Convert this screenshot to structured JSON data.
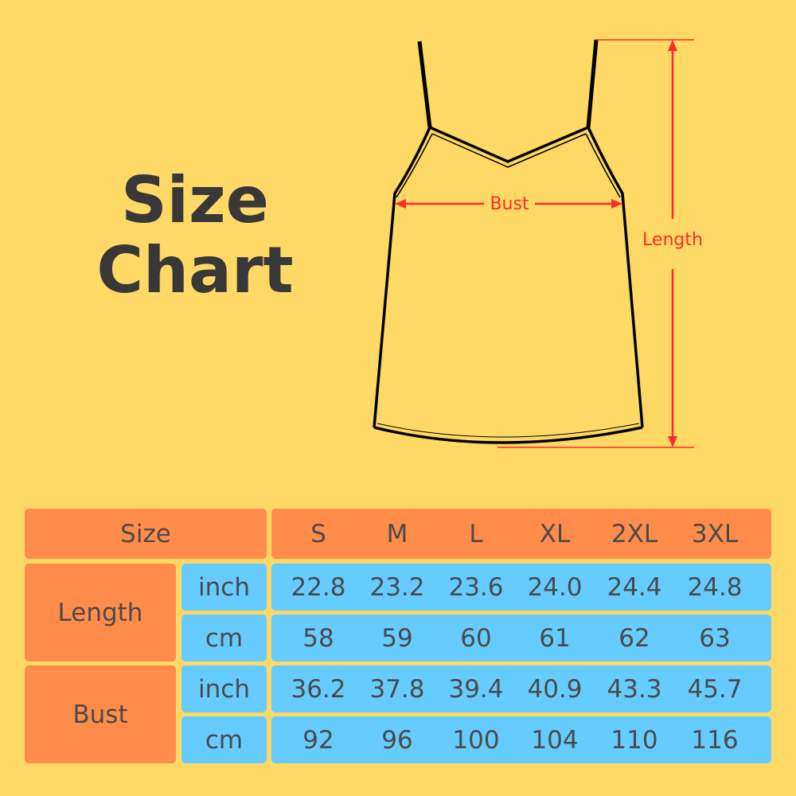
{
  "title": {
    "line1": "Size",
    "line2": "Chart"
  },
  "diagram": {
    "bust_label": "Bust",
    "length_label": "Length",
    "arrow_color": "#FF2A2A"
  },
  "colors": {
    "background": "#FFD966",
    "header": "#FF8C4A",
    "cells": "#66CCFF",
    "text": "#4A4A4A"
  },
  "table": {
    "size_header": "Size",
    "sizes": [
      "S",
      "M",
      "L",
      "XL",
      "2XL",
      "3XL"
    ],
    "rows": [
      {
        "measure": "Length",
        "units": [
          {
            "unit": "inch",
            "values": [
              "22.8",
              "23.2",
              "23.6",
              "24.0",
              "24.4",
              "24.8"
            ]
          },
          {
            "unit": "cm",
            "values": [
              "58",
              "59",
              "60",
              "61",
              "62",
              "63"
            ]
          }
        ]
      },
      {
        "measure": "Bust",
        "units": [
          {
            "unit": "inch",
            "values": [
              "36.2",
              "37.8",
              "39.4",
              "40.9",
              "43.3",
              "45.7"
            ]
          },
          {
            "unit": "cm",
            "values": [
              "92",
              "96",
              "100",
              "104",
              "110",
              "116"
            ]
          }
        ]
      }
    ]
  }
}
